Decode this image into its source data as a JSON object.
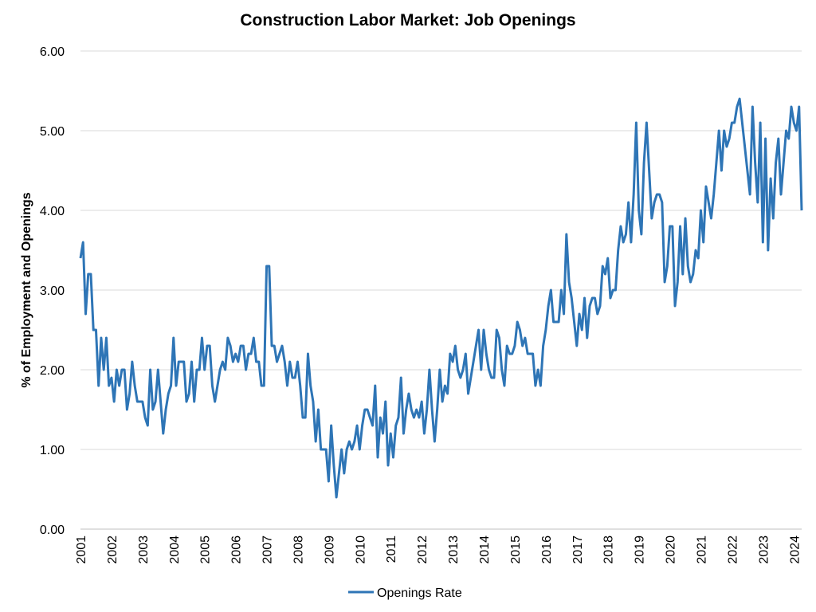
{
  "chart_data": {
    "type": "line",
    "title": "Construction Labor Market: Job Openings",
    "xlabel": "",
    "ylabel": "% of Employment and Openings",
    "ylim": [
      0,
      6
    ],
    "y_ticks": [
      "0.00",
      "1.00",
      "2.00",
      "3.00",
      "4.00",
      "5.00",
      "6.00"
    ],
    "x_ticks": [
      "2001",
      "2002",
      "2003",
      "2004",
      "2005",
      "2006",
      "2007",
      "2008",
      "2009",
      "2010",
      "2011",
      "2012",
      "2013",
      "2014",
      "2015",
      "2016",
      "2017",
      "2018",
      "2019",
      "2020",
      "2021",
      "2022",
      "2023",
      "2024"
    ],
    "grid": "horizontal",
    "legend_position": "bottom-center",
    "x_start": "2001-01",
    "frequency": "monthly",
    "series": [
      {
        "name": "Openings Rate",
        "color": "#2E75B6",
        "values": [
          3.4,
          3.6,
          2.7,
          3.2,
          3.2,
          2.5,
          2.5,
          1.8,
          2.4,
          2.0,
          2.4,
          1.8,
          1.9,
          1.6,
          2.0,
          1.8,
          2.0,
          2.0,
          1.5,
          1.7,
          2.1,
          1.8,
          1.6,
          1.6,
          1.6,
          1.4,
          1.3,
          2.0,
          1.5,
          1.6,
          2.0,
          1.6,
          1.2,
          1.5,
          1.7,
          1.8,
          2.4,
          1.8,
          2.1,
          2.1,
          2.1,
          1.6,
          1.7,
          2.1,
          1.6,
          2.0,
          2.0,
          2.4,
          2.0,
          2.3,
          2.3,
          1.8,
          1.6,
          1.8,
          2.0,
          2.1,
          2.0,
          2.4,
          2.3,
          2.1,
          2.2,
          2.1,
          2.3,
          2.3,
          2.0,
          2.2,
          2.2,
          2.4,
          2.1,
          2.1,
          1.8,
          1.8,
          3.3,
          3.3,
          2.3,
          2.3,
          2.1,
          2.2,
          2.3,
          2.1,
          1.8,
          2.1,
          1.9,
          1.9,
          2.1,
          1.8,
          1.4,
          1.4,
          2.2,
          1.8,
          1.6,
          1.1,
          1.5,
          1.0,
          1.0,
          1.0,
          0.6,
          1.3,
          0.8,
          0.4,
          0.7,
          1.0,
          0.7,
          1.0,
          1.1,
          1.0,
          1.1,
          1.3,
          1.0,
          1.3,
          1.5,
          1.5,
          1.4,
          1.3,
          1.8,
          0.9,
          1.4,
          1.2,
          1.6,
          0.8,
          1.2,
          0.9,
          1.3,
          1.4,
          1.9,
          1.2,
          1.5,
          1.7,
          1.5,
          1.4,
          1.5,
          1.4,
          1.6,
          1.2,
          1.5,
          2.0,
          1.5,
          1.1,
          1.5,
          2.0,
          1.6,
          1.8,
          1.7,
          2.2,
          2.1,
          2.3,
          2.0,
          1.9,
          2.0,
          2.2,
          1.7,
          1.9,
          2.1,
          2.3,
          2.5,
          2.0,
          2.5,
          2.2,
          2.0,
          1.9,
          1.9,
          2.5,
          2.4,
          2.0,
          1.8,
          2.3,
          2.2,
          2.2,
          2.3,
          2.6,
          2.5,
          2.3,
          2.4,
          2.2,
          2.2,
          2.2,
          1.8,
          2.0,
          1.8,
          2.3,
          2.5,
          2.8,
          3.0,
          2.6,
          2.6,
          2.6,
          3.0,
          2.7,
          3.7,
          3.1,
          2.9,
          2.6,
          2.3,
          2.7,
          2.5,
          2.9,
          2.4,
          2.8,
          2.9,
          2.9,
          2.7,
          2.8,
          3.3,
          3.2,
          3.4,
          2.9,
          3.0,
          3.0,
          3.5,
          3.8,
          3.6,
          3.7,
          4.1,
          3.6,
          4.2,
          5.1,
          4.0,
          3.7,
          4.6,
          5.1,
          4.5,
          3.9,
          4.1,
          4.2,
          4.2,
          4.1,
          3.1,
          3.3,
          3.8,
          3.8,
          2.8,
          3.1,
          3.8,
          3.2,
          3.9,
          3.3,
          3.1,
          3.2,
          3.5,
          3.4,
          4.0,
          3.6,
          4.3,
          4.1,
          3.9,
          4.2,
          4.6,
          5.0,
          4.5,
          5.0,
          4.8,
          4.9,
          5.1,
          5.1,
          5.3,
          5.4,
          5.1,
          4.8,
          4.5,
          4.2,
          5.3,
          4.6,
          4.1,
          5.1,
          3.6,
          4.9,
          3.5,
          4.4,
          3.9,
          4.6,
          4.9,
          4.2,
          4.6,
          5.0,
          4.9,
          5.3,
          5.1,
          5.0,
          5.3,
          4.0
        ]
      }
    ]
  }
}
